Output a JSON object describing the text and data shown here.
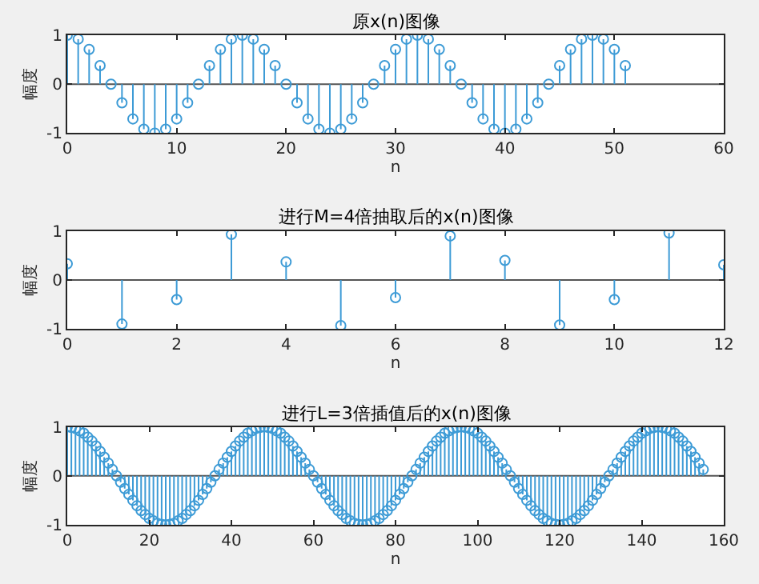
{
  "chart_data": [
    {
      "type": "lollipop",
      "title": "原x(n)图像",
      "xlabel": "n",
      "ylabel": "幅度",
      "color": "#3d9bd6",
      "marker": "circle",
      "x": [
        0,
        1,
        2,
        3,
        4,
        5,
        6,
        7,
        8,
        9,
        10,
        11,
        12,
        13,
        14,
        15,
        16,
        17,
        18,
        19,
        20,
        21,
        22,
        23,
        24,
        25,
        26,
        27,
        28,
        29,
        30,
        31,
        32,
        33,
        34,
        35,
        36,
        37,
        38,
        39,
        40,
        41,
        42,
        43,
        44,
        45,
        46,
        47,
        48,
        49,
        50,
        51
      ],
      "values": [
        1,
        0.92,
        0.71,
        0.38,
        0,
        -0.38,
        -0.71,
        -0.92,
        -1,
        -0.92,
        -0.71,
        -0.38,
        0,
        0.38,
        0.71,
        0.92,
        1,
        0.92,
        0.71,
        0.38,
        0,
        -0.38,
        -0.71,
        -0.92,
        -1,
        -0.92,
        -0.71,
        -0.38,
        0,
        0.38,
        0.71,
        0.92,
        1,
        0.92,
        0.71,
        0.38,
        0,
        -0.38,
        -0.71,
        -0.92,
        -1,
        -0.92,
        -0.71,
        -0.38,
        0,
        0.38,
        0.71,
        0.92,
        1,
        0.92,
        0.71,
        0.38
      ],
      "xlim": [
        0,
        60
      ],
      "xticks": [
        0,
        10,
        20,
        30,
        40,
        50,
        60
      ],
      "ylim": [
        -1,
        1
      ],
      "yticks": [
        -1,
        0,
        1
      ],
      "ref_lines": [
        {
          "axis": "y",
          "value": 0,
          "color": "#555555"
        }
      ]
    },
    {
      "type": "lollipop",
      "title": "进行M=4倍抽取后的x(n)图像",
      "xlabel": "n",
      "ylabel": "幅度",
      "color": "#3d9bd6",
      "marker": "circle",
      "x": [
        0,
        1,
        2,
        3,
        4,
        5,
        6,
        7,
        8,
        9,
        10,
        11,
        12
      ],
      "values": [
        0.33,
        -0.9,
        -0.4,
        0.93,
        0.37,
        -0.93,
        -0.36,
        0.9,
        0.4,
        -0.92,
        -0.4,
        0.96,
        0.31
      ],
      "xlim": [
        0,
        12
      ],
      "xticks": [
        0,
        2,
        4,
        6,
        8,
        10,
        12
      ],
      "ylim": [
        -1,
        1
      ],
      "yticks": [
        -1,
        0,
        1
      ],
      "ref_lines": [
        {
          "axis": "y",
          "value": 0,
          "color": "#555555"
        }
      ]
    },
    {
      "type": "lollipop",
      "title": "进行L=3倍插值后的x(n)图像",
      "xlabel": "n",
      "ylabel": "幅度",
      "color": "#3d9bd6",
      "marker": "circle",
      "x": [
        0,
        1,
        2,
        3,
        4,
        5,
        6,
        7,
        8,
        9,
        10,
        11,
        12,
        13,
        14,
        15,
        16,
        17,
        18,
        19,
        20,
        21,
        22,
        23,
        24,
        25,
        26,
        27,
        28,
        29,
        30,
        31,
        32,
        33,
        34,
        35,
        36,
        37,
        38,
        39,
        40,
        41,
        42,
        43,
        44,
        45,
        46,
        47,
        48,
        49,
        50,
        51,
        52,
        53,
        54,
        55,
        56,
        57,
        58,
        59,
        60,
        61,
        62,
        63,
        64,
        65,
        66,
        67,
        68,
        69,
        70,
        71,
        72,
        73,
        74,
        75,
        76,
        77,
        78,
        79,
        80,
        81,
        82,
        83,
        84,
        85,
        86,
        87,
        88,
        89,
        90,
        91,
        92,
        93,
        94,
        95,
        96,
        97,
        98,
        99,
        100,
        101,
        102,
        103,
        104,
        105,
        106,
        107,
        108,
        109,
        110,
        111,
        112,
        113,
        114,
        115,
        116,
        117,
        118,
        119,
        120,
        121,
        122,
        123,
        124,
        125,
        126,
        127,
        128,
        129,
        130,
        131,
        132,
        133,
        134,
        135,
        136,
        137,
        138,
        139,
        140,
        141,
        142,
        143,
        144,
        145,
        146,
        147,
        148,
        149,
        150,
        151,
        152,
        153,
        154,
        155
      ],
      "values": [
        1,
        0.99,
        0.97,
        0.92,
        0.87,
        0.79,
        0.71,
        0.61,
        0.5,
        0.38,
        0.26,
        0.13,
        0,
        -0.13,
        -0.26,
        -0.38,
        -0.5,
        -0.61,
        -0.71,
        -0.79,
        -0.87,
        -0.92,
        -0.97,
        -0.99,
        -1,
        -0.99,
        -0.97,
        -0.92,
        -0.87,
        -0.79,
        -0.71,
        -0.61,
        -0.5,
        -0.38,
        -0.26,
        -0.13,
        0,
        0.13,
        0.26,
        0.38,
        0.5,
        0.61,
        0.71,
        0.79,
        0.87,
        0.92,
        0.97,
        0.99,
        1,
        0.99,
        0.97,
        0.92,
        0.87,
        0.79,
        0.71,
        0.61,
        0.5,
        0.38,
        0.26,
        0.13,
        0,
        -0.13,
        -0.26,
        -0.38,
        -0.5,
        -0.61,
        -0.71,
        -0.79,
        -0.87,
        -0.92,
        -0.97,
        -0.99,
        -1,
        -0.99,
        -0.97,
        -0.92,
        -0.87,
        -0.79,
        -0.71,
        -0.61,
        -0.5,
        -0.38,
        -0.26,
        -0.13,
        0,
        0.13,
        0.26,
        0.38,
        0.5,
        0.61,
        0.71,
        0.79,
        0.87,
        0.92,
        0.97,
        0.99,
        1,
        0.99,
        0.97,
        0.92,
        0.87,
        0.79,
        0.71,
        0.61,
        0.5,
        0.38,
        0.26,
        0.13,
        0,
        -0.13,
        -0.26,
        -0.38,
        -0.5,
        -0.61,
        -0.71,
        -0.79,
        -0.87,
        -0.92,
        -0.97,
        -0.99,
        -1,
        -0.99,
        -0.97,
        -0.92,
        -0.87,
        -0.79,
        -0.71,
        -0.61,
        -0.5,
        -0.38,
        -0.26,
        -0.13,
        0,
        0.13,
        0.26,
        0.38,
        0.5,
        0.61,
        0.71,
        0.79,
        0.87,
        0.92,
        0.97,
        0.99,
        1,
        0.99,
        0.97,
        0.92,
        0.87,
        0.79,
        0.71,
        0.61,
        0.5,
        0.38,
        0.26,
        0.13
      ],
      "xlim": [
        0,
        160
      ],
      "xticks": [
        0,
        20,
        40,
        60,
        80,
        100,
        120,
        140,
        160
      ],
      "ylim": [
        -1,
        1
      ],
      "yticks": [
        -1,
        0,
        1
      ],
      "ref_lines": [
        {
          "axis": "y",
          "value": 0,
          "color": "#555555"
        }
      ]
    }
  ]
}
